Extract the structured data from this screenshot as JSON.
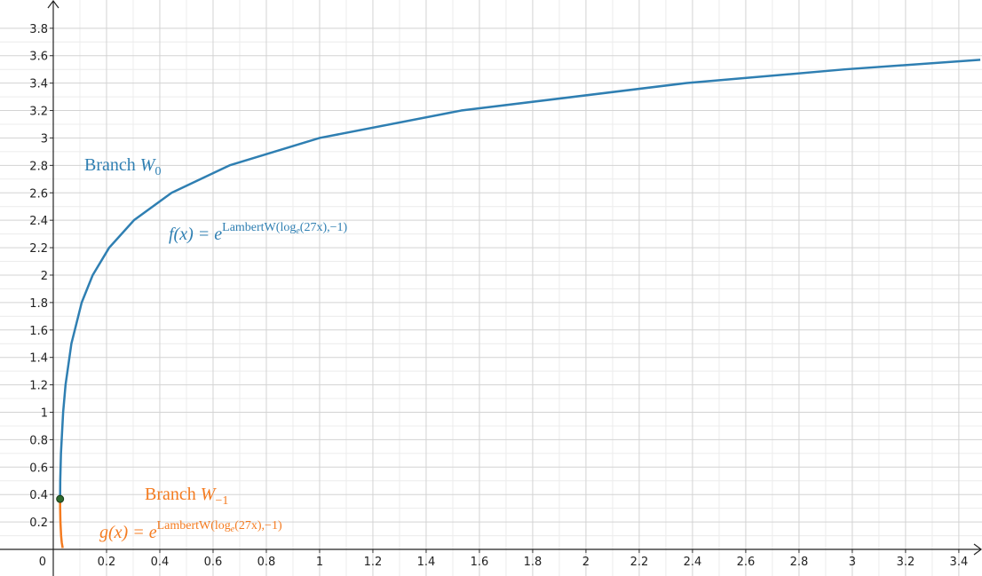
{
  "chart_data": {
    "type": "line",
    "xlim": [
      -0.2,
      3.487
    ],
    "ylim": [
      -0.194,
      4.006
    ],
    "xticks": [
      0,
      0.2,
      0.4,
      0.6,
      0.8,
      1,
      1.2,
      1.4,
      1.6,
      1.8,
      2,
      2.2,
      2.4,
      2.6,
      2.8,
      3,
      3.2,
      3.4
    ],
    "yticks": [
      0.2,
      0.4,
      0.6,
      0.8,
      1,
      1.2,
      1.4,
      1.6,
      1.8,
      2,
      2.2,
      2.4,
      2.6,
      2.8,
      3,
      3.2,
      3.4,
      3.6,
      3.8
    ],
    "grid": true,
    "series": [
      {
        "name": "f",
        "color": "#2f7fb2",
        "x": [
          0.02564,
          0.02619,
          0.02885,
          0.03704,
          0.0461,
          0.06804,
          0.1067,
          0.1481,
          0.2099,
          0.3028,
          0.4442,
          0.6617,
          1,
          1.5315,
          2.3756,
          2.9708,
          3.4807
        ],
        "values": [
          0.3679,
          0.5,
          0.7,
          1,
          1.2,
          1.5,
          1.8,
          2,
          2.2,
          2.4,
          2.6,
          2.8,
          3,
          3.2,
          3.4,
          3.5,
          3.57
        ]
      },
      {
        "name": "g",
        "color": "#f47b20",
        "x": [
          0.02564,
          0.02581,
          0.02684,
          0.02942,
          0.03189,
          0.03537
        ],
        "values": [
          0.3679,
          0.3,
          0.2,
          0.1,
          0.05,
          0.01
        ]
      }
    ],
    "points": [
      {
        "x": 0.02564,
        "y": 0.3679,
        "color": "#2e6b2e"
      }
    ],
    "annotations": [
      {
        "text": "Branch ",
        "math": "W",
        "sub": "0",
        "color": "#2f7fb2"
      },
      {
        "text": "f(x) = e",
        "sup": "LambertW(log",
        "sup_sub": "e",
        "sup_end": "(27x),−1)",
        "color": "#2f7fb2"
      },
      {
        "text": "Branch ",
        "math": "W",
        "sub": "−1",
        "color": "#f47b20"
      },
      {
        "text": "g(x)  =  e",
        "sup": "LambertW(log",
        "sup_sub": "e",
        "sup_end": "(27x),−1)",
        "color": "#f47b20"
      }
    ]
  }
}
